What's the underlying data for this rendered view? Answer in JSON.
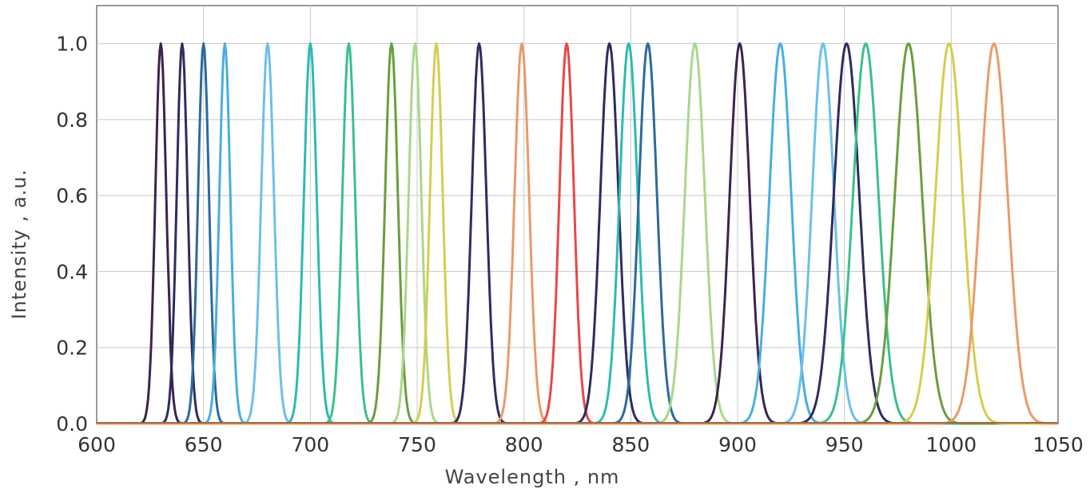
{
  "chart_data": {
    "type": "line",
    "title": "",
    "xlabel": "Wavelength , nm",
    "ylabel": "Intensity , a.u.",
    "xlim": [
      600,
      1050
    ],
    "ylim": [
      0,
      1.1
    ],
    "x_ticks": [
      600,
      650,
      700,
      750,
      800,
      850,
      900,
      950,
      1000,
      1050
    ],
    "y_ticks": [
      0.0,
      0.2,
      0.4,
      0.6,
      0.8,
      1.0
    ],
    "x_tick_labels": [
      "600",
      "650",
      "700",
      "750",
      "800",
      "850",
      "900",
      "950",
      "1000",
      "1050"
    ],
    "y_tick_labels": [
      "0.0",
      "0.2",
      "0.4",
      "0.6",
      "0.8",
      "1.0"
    ],
    "grid": true,
    "legend": "none",
    "series": [
      {
        "peak": 630,
        "fwhm": 6,
        "color": "#3b2450",
        "shoulder": 0.41
      },
      {
        "peak": 640,
        "fwhm": 6,
        "color": "#2f2c5e",
        "shoulder": 0.12
      },
      {
        "peak": 650,
        "fwhm": 6,
        "color": "#2d6a9c"
      },
      {
        "peak": 660,
        "fwhm": 6,
        "color": "#4aaee0"
      },
      {
        "peak": 680,
        "fwhm": 7,
        "color": "#6cc0e8"
      },
      {
        "peak": 700,
        "fwhm": 7,
        "color": "#2ebbb0"
      },
      {
        "peak": 718,
        "fwhm": 7,
        "color": "#3cbf8c"
      },
      {
        "peak": 738,
        "fwhm": 7,
        "color": "#6a9e3e"
      },
      {
        "peak": 749,
        "fwhm": 7,
        "color": "#a9d88a"
      },
      {
        "peak": 759,
        "fwhm": 7,
        "color": "#d6cc52"
      },
      {
        "peak": 779,
        "fwhm": 8,
        "color": "#2f2c5e"
      },
      {
        "peak": 799,
        "fwhm": 8,
        "color": "#e89a6c"
      },
      {
        "peak": 820,
        "fwhm": 8,
        "color": "#e84848"
      },
      {
        "peak": 840,
        "fwhm": 10,
        "color": "#2f2c5e"
      },
      {
        "peak": 849,
        "fwhm": 10,
        "color": "#2ebbb0"
      },
      {
        "peak": 858,
        "fwhm": 10,
        "color": "#2d6a9c"
      },
      {
        "peak": 880,
        "fwhm": 11,
        "color": "#a9d88a"
      },
      {
        "peak": 901,
        "fwhm": 11,
        "color": "#3b2450"
      },
      {
        "peak": 920,
        "fwhm": 12,
        "color": "#4aaee0"
      },
      {
        "peak": 940,
        "fwhm": 12,
        "color": "#6cc0e8"
      },
      {
        "peak": 951,
        "fwhm": 14,
        "color": "#2f2c5e"
      },
      {
        "peak": 960,
        "fwhm": 14,
        "color": "#3cbf8c"
      },
      {
        "peak": 980,
        "fwhm": 15,
        "color": "#6a9e3e"
      },
      {
        "peak": 999,
        "fwhm": 15,
        "color": "#d6cc52"
      },
      {
        "peak": 1020,
        "fwhm": 15,
        "color": "#e89a6c"
      }
    ]
  }
}
